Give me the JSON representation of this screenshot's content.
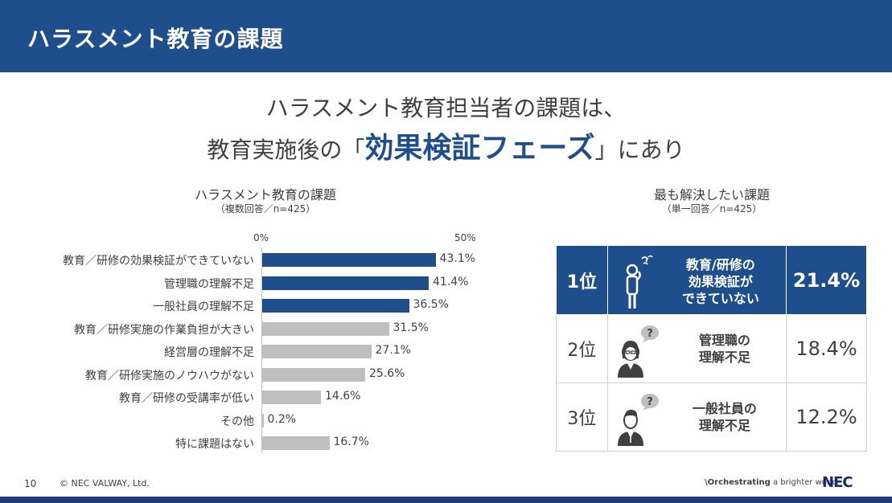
{
  "header": {
    "title": "ハラスメント教育の課題"
  },
  "headline": {
    "line1": "ハラスメント教育担当者の課題は、",
    "line2_prefix": "教育実施後の「",
    "line2_emphasis": "効果検証フェーズ",
    "line2_suffix": "」にあり"
  },
  "chart_data": {
    "type": "bar",
    "orientation": "horizontal",
    "title": "ハラスメント教育の課題",
    "subtitle": "（複数回答／n=425）",
    "tick_labels": [
      "0%",
      "50%"
    ],
    "xlim": [
      0,
      50
    ],
    "categories": [
      "教育／研修の効果検証ができていない",
      "管理職の理解不足",
      "一般社員の理解不足",
      "教育／研修実施の作業負担が大きい",
      "経営層の理解不足",
      "教育／研修実施のノウハウがない",
      "教育／研修の受講率が低い",
      "その他",
      "特に課題はない"
    ],
    "values": [
      43.1,
      41.4,
      36.5,
      31.5,
      27.1,
      25.6,
      14.6,
      0.2,
      16.7
    ],
    "value_labels": [
      "43.1%",
      "41.4%",
      "36.5%",
      "31.5%",
      "27.1%",
      "25.6%",
      "14.6%",
      "0.2%",
      "16.7%"
    ],
    "highlight_color": "#1f4e8c",
    "default_color": "#bfbfbf",
    "highlight_count": 3
  },
  "ranking": {
    "title": "最も解決したい課題",
    "subtitle": "（単一回答／n=425）",
    "rows": [
      {
        "rank": "1位",
        "desc_line1": "教育/研修の",
        "desc_line2": "効果検証が",
        "desc_line3": "できていない",
        "percent": "21.4%",
        "icon": "thinking-person-icon"
      },
      {
        "rank": "2位",
        "desc_line1": "管理職の",
        "desc_line2": "理解不足",
        "desc_line3": "",
        "percent": "18.4%",
        "icon": "manager-question-icon"
      },
      {
        "rank": "3位",
        "desc_line1": "一般社員の",
        "desc_line2": "理解不足",
        "desc_line3": "",
        "percent": "12.2%",
        "icon": "employee-question-icon"
      }
    ],
    "highlight_color": "#1f4e8c"
  },
  "footer": {
    "page_number": "10",
    "copyright": "© NEC VALWAY, Ltd.",
    "tagline_bold": "\\Orchestrating",
    "tagline_rest": " a brighter world",
    "logo": "NEC"
  }
}
